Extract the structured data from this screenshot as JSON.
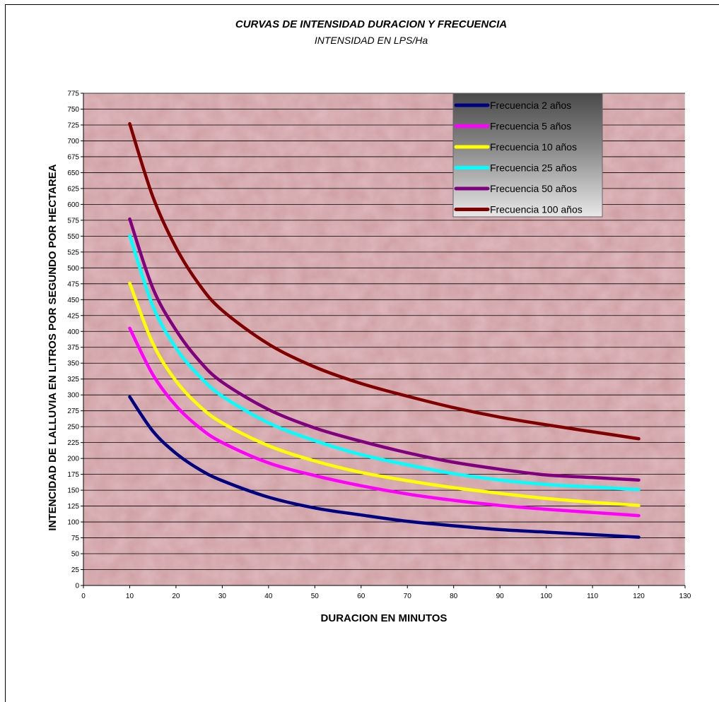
{
  "chart_data": {
    "type": "line",
    "title": "CURVAS DE  INTENSIDAD DURACION Y FRECUENCIA",
    "subtitle": "INTENSIDAD EN LPS/Ha",
    "xlabel": "DURACION EN MINUTOS",
    "ylabel": "INTENCIDAD DE LALLUVIA EN LITROS POR SEGUNDO POR HECTAREA",
    "xlim": [
      0,
      130
    ],
    "ylim": [
      0,
      775
    ],
    "xticks": [
      "0",
      "10",
      "20",
      "30",
      "40",
      "50",
      "60",
      "70",
      "80",
      "90",
      "100",
      "110",
      "120",
      "130"
    ],
    "yticks": [
      "0",
      "25",
      "50",
      "75",
      "100",
      "125",
      "150",
      "175",
      "200",
      "225",
      "250",
      "275",
      "300",
      "325",
      "350",
      "375",
      "400",
      "425",
      "450",
      "475",
      "500",
      "525",
      "550",
      "575",
      "600",
      "625",
      "650",
      "675",
      "700",
      "725",
      "750",
      "775"
    ],
    "grid": "horizontal",
    "legend_position": "top-right",
    "x": [
      10,
      15,
      20,
      25,
      30,
      40,
      50,
      60,
      70,
      80,
      90,
      100,
      110,
      120
    ],
    "series": [
      {
        "name": "Frecuencia 2 años",
        "color": "#000080",
        "values": [
          297,
          243,
          208,
          183,
          165,
          139,
          122,
          111,
          101,
          94,
          88,
          84,
          80,
          76
        ]
      },
      {
        "name": "Frecuencia 5 años",
        "color": "#ff00ff",
        "values": [
          405,
          332,
          283,
          249,
          225,
          193,
          173,
          157,
          144,
          134,
          126,
          120,
          115,
          110
        ]
      },
      {
        "name": "Frecuencia 10 años",
        "color": "#ffff00",
        "values": [
          476,
          381,
          322,
          283,
          256,
          220,
          196,
          178,
          165,
          154,
          145,
          137,
          131,
          126
        ]
      },
      {
        "name": "Frecuencia 25 años",
        "color": "#00ffff",
        "values": [
          551,
          440,
          374,
          330,
          298,
          256,
          228,
          206,
          190,
          176,
          166,
          159,
          155,
          151
        ]
      },
      {
        "name": "Frecuencia 50 años",
        "color": "#800080",
        "values": [
          577,
          468,
          402,
          354,
          320,
          277,
          248,
          227,
          209,
          194,
          183,
          174,
          170,
          166
        ]
      },
      {
        "name": "Frecuencia 100 años",
        "color": "#800000",
        "values": [
          727,
          612,
          532,
          474,
          433,
          380,
          344,
          318,
          298,
          280,
          265,
          253,
          242,
          231
        ]
      }
    ]
  }
}
